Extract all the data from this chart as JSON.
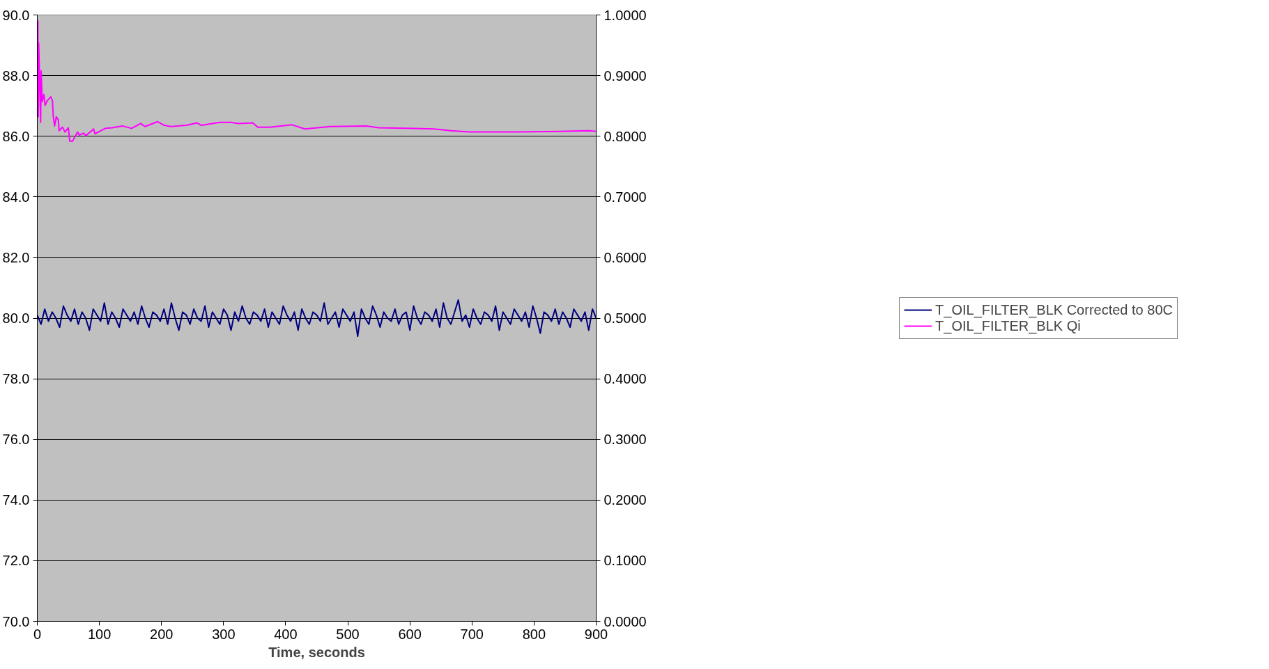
{
  "chart_data": {
    "type": "line",
    "xlabel": "Time, seconds",
    "xlim": [
      0,
      900
    ],
    "xticks": [
      0,
      100,
      200,
      300,
      400,
      500,
      600,
      700,
      800,
      900
    ],
    "ylim": [
      70,
      90
    ],
    "yticks": [
      {
        "value": 70,
        "label": "70.0"
      },
      {
        "value": 72,
        "label": "72.0"
      },
      {
        "value": 74,
        "label": "74.0"
      },
      {
        "value": 76,
        "label": "76.0"
      },
      {
        "value": 78,
        "label": "78.0"
      },
      {
        "value": 80,
        "label": "80.0"
      },
      {
        "value": 82,
        "label": "82.0"
      },
      {
        "value": 84,
        "label": "84.0"
      },
      {
        "value": 86,
        "label": "86.0"
      },
      {
        "value": 88,
        "label": "88.0"
      },
      {
        "value": 90,
        "label": "90.0"
      }
    ],
    "y2lim": [
      0,
      1
    ],
    "y2ticks": [
      {
        "value": 0,
        "label": "0.0000"
      },
      {
        "value": 0.1,
        "label": "0.1000"
      },
      {
        "value": 0.2,
        "label": "0.2000"
      },
      {
        "value": 0.3,
        "label": "0.3000"
      },
      {
        "value": 0.4,
        "label": "0.4000"
      },
      {
        "value": 0.5,
        "label": "0.5000"
      },
      {
        "value": 0.6,
        "label": "0.6000"
      },
      {
        "value": 0.7,
        "label": "0.7000"
      },
      {
        "value": 0.8,
        "label": "0.8000"
      },
      {
        "value": 0.9,
        "label": "0.9000"
      },
      {
        "value": 1,
        "label": "1.0000"
      }
    ],
    "grid": "y",
    "legend": "right",
    "series": [
      {
        "name": "T_OIL_FILTER_BLK Corrected to 80C",
        "color": "#000080",
        "x": [
          0,
          6,
          12,
          18,
          24,
          30,
          36,
          42,
          48,
          54,
          60,
          66,
          72,
          78,
          84,
          90,
          96,
          102,
          108,
          114,
          120,
          126,
          132,
          138,
          144,
          150,
          156,
          162,
          168,
          174,
          180,
          186,
          192,
          198,
          204,
          210,
          216,
          222,
          228,
          234,
          240,
          246,
          252,
          258,
          264,
          270,
          276,
          282,
          288,
          294,
          300,
          306,
          312,
          318,
          324,
          330,
          336,
          342,
          348,
          354,
          360,
          366,
          372,
          378,
          384,
          390,
          396,
          402,
          408,
          414,
          420,
          426,
          432,
          438,
          444,
          450,
          456,
          462,
          468,
          474,
          480,
          486,
          492,
          498,
          504,
          510,
          516,
          522,
          528,
          534,
          540,
          546,
          552,
          558,
          564,
          570,
          576,
          582,
          588,
          594,
          600,
          606,
          612,
          618,
          624,
          630,
          636,
          642,
          648,
          654,
          660,
          666,
          672,
          678,
          684,
          690,
          696,
          702,
          708,
          714,
          720,
          726,
          732,
          738,
          744,
          750,
          756,
          762,
          768,
          774,
          780,
          786,
          792,
          798,
          804,
          810,
          816,
          822,
          828,
          834,
          840,
          846,
          852,
          858,
          864,
          870,
          876,
          882,
          888,
          894,
          900
        ],
        "values": [
          80.1,
          79.8,
          80.3,
          79.9,
          80.2,
          80.0,
          79.7,
          80.4,
          80.1,
          79.9,
          80.3,
          79.8,
          80.2,
          80.0,
          79.6,
          80.3,
          80.1,
          79.9,
          80.5,
          79.8,
          80.2,
          80.0,
          79.7,
          80.3,
          80.1,
          79.9,
          80.2,
          79.8,
          80.4,
          80.0,
          79.7,
          80.2,
          80.1,
          79.9,
          80.3,
          79.8,
          80.5,
          80.0,
          79.6,
          80.2,
          80.1,
          79.8,
          80.3,
          80.0,
          79.9,
          80.4,
          79.7,
          80.2,
          80.0,
          79.8,
          80.3,
          80.1,
          79.6,
          80.2,
          79.9,
          80.4,
          80.0,
          79.8,
          80.2,
          80.1,
          79.9,
          80.3,
          79.7,
          80.2,
          80.0,
          79.8,
          80.4,
          80.1,
          79.9,
          80.2,
          79.6,
          80.3,
          80.0,
          79.8,
          80.2,
          80.1,
          79.9,
          80.5,
          79.8,
          80.0,
          80.2,
          79.7,
          80.3,
          80.1,
          79.9,
          80.2,
          79.4,
          80.3,
          80.0,
          79.8,
          80.4,
          80.1,
          79.7,
          80.2,
          80.0,
          79.9,
          80.3,
          79.8,
          80.1,
          80.2,
          79.6,
          80.4,
          80.0,
          79.8,
          80.2,
          80.1,
          79.9,
          80.3,
          79.7,
          80.5,
          80.0,
          79.8,
          80.2,
          80.6,
          79.9,
          80.1,
          79.7,
          80.3,
          80.0,
          79.8,
          80.2,
          80.1,
          79.9,
          80.4,
          79.6,
          80.2,
          80.0,
          79.8,
          80.3,
          80.1,
          79.9,
          80.2,
          79.7,
          80.4,
          80.0,
          79.5,
          80.2,
          80.1,
          79.9,
          80.3,
          79.8,
          80.2,
          80.0,
          79.7,
          80.3,
          80.1,
          79.9,
          80.2,
          79.6,
          80.3,
          80.0
        ]
      },
      {
        "name": "T_OIL_FILTER_BLK Qi",
        "color": "#ff00ff",
        "axis": "y2",
        "x": [
          1,
          1.6,
          2.2,
          3,
          5.4,
          6.2,
          8,
          10.7,
          12.6,
          16.2,
          21.6,
          24.4,
          25.7,
          27.9,
          30.6,
          33.9,
          35.2,
          40.6,
          44.6,
          50,
          52.2,
          56.8,
          65,
          67.7,
          74.4,
          78.5,
          90.7,
          92.9,
          109.7,
          120.6,
          136.9,
          151.8,
          166.7,
          173.4,
          193.8,
          204.6,
          215.4,
          239.8,
          257.4,
          264.2,
          294,
          312,
          324,
          347,
          355,
          374.6,
          409.6,
          431,
          471.8,
          530,
          549.6,
          608,
          639,
          666,
          695,
          724,
          775,
          841.5,
          888,
          900
        ],
        "values": [
          0.991,
          0.832,
          0.954,
          0.924,
          0.823,
          0.908,
          0.857,
          0.869,
          0.851,
          0.859,
          0.865,
          0.859,
          0.833,
          0.817,
          0.832,
          0.827,
          0.809,
          0.815,
          0.807,
          0.814,
          0.792,
          0.792,
          0.807,
          0.802,
          0.805,
          0.801,
          0.812,
          0.804,
          0.813,
          0.814,
          0.817,
          0.813,
          0.821,
          0.816,
          0.824,
          0.818,
          0.816,
          0.818,
          0.822,
          0.818,
          0.823,
          0.823,
          0.821,
          0.822,
          0.815,
          0.815,
          0.819,
          0.812,
          0.816,
          0.817,
          0.814,
          0.813,
          0.812,
          0.809,
          0.807,
          0.807,
          0.807,
          0.808,
          0.809,
          0.808
        ]
      }
    ]
  }
}
